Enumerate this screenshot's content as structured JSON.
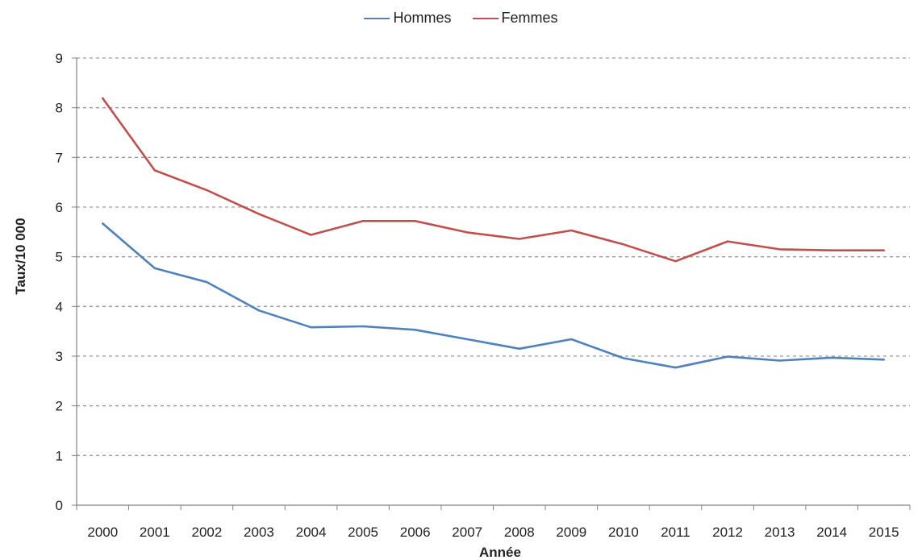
{
  "chart_data": {
    "type": "line",
    "xlabel": "Année",
    "ylabel": "Taux/10 000",
    "ylim": [
      0,
      9
    ],
    "yticks": [
      0,
      1,
      2,
      3,
      4,
      5,
      6,
      7,
      8,
      9
    ],
    "grid": "horizontal dashed",
    "legend_position": "top-center",
    "categories": [
      "2000",
      "2001",
      "2002",
      "2003",
      "2004",
      "2005",
      "2006",
      "2007",
      "2008",
      "2009",
      "2010",
      "2011",
      "2012",
      "2013",
      "2014",
      "2015"
    ],
    "series": [
      {
        "name": "Hommes",
        "color": "#4f81bd",
        "values": [
          5.67,
          4.77,
          4.49,
          3.92,
          3.58,
          3.6,
          3.53,
          3.34,
          3.15,
          3.34,
          2.96,
          2.77,
          2.99,
          2.91,
          2.97,
          2.93
        ]
      },
      {
        "name": "Femmes",
        "color": "#c0504d",
        "values": [
          8.19,
          6.74,
          6.34,
          5.86,
          5.44,
          5.72,
          5.72,
          5.49,
          5.36,
          5.53,
          5.25,
          4.91,
          5.31,
          5.15,
          5.13,
          5.13
        ]
      }
    ]
  }
}
